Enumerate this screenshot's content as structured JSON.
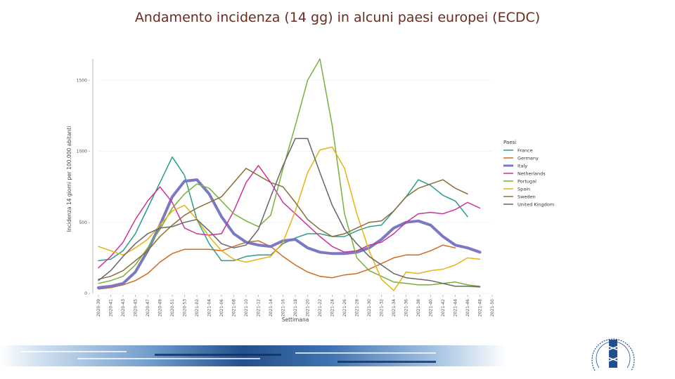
{
  "slide": {
    "title": "Andamento incidenza (14 gg) in alcuni paesi europei (ECDC)"
  },
  "colors": {
    "title": "#6b2b1f",
    "axis": "#777777",
    "grid": "#eeeeee"
  },
  "icons": {
    "footer": "footer-banner-graphic",
    "seal": "istituto-superiore-di-sanita-seal"
  },
  "chart_data": {
    "type": "line",
    "title": "",
    "xlabel": "Settimana",
    "ylabel": "Incidenza 14 giorni per 100.000 abitanti",
    "ylim": [
      0,
      1650
    ],
    "yticks": [
      0,
      500,
      1000,
      1500
    ],
    "ytick_labels": [
      "0 -",
      "500 -",
      "1000 -",
      "1500 -"
    ],
    "grid": false,
    "legend": {
      "title": "Paesi",
      "position": "right"
    },
    "categories": [
      "2020-39",
      "2020-41",
      "2020-43",
      "2020-45",
      "2020-47",
      "2020-49",
      "2020-51",
      "2020-53",
      "2021-02",
      "2021-04",
      "2021-06",
      "2021-08",
      "2021-10",
      "2021-12",
      "2021-14",
      "2021-16",
      "2021-18",
      "2021-20",
      "2021-22",
      "2021-24",
      "2021-26",
      "2021-28",
      "2021-30",
      "2021-32",
      "2021-34",
      "2021-36",
      "2021-38",
      "2021-40",
      "2021-42",
      "2021-44",
      "2021-46",
      "2021-48",
      "2021-50"
    ],
    "series": [
      {
        "name": "France",
        "color": "#2a9d8f",
        "width": 1.5,
        "values": [
          230,
          240,
          300,
          420,
          600,
          780,
          960,
          830,
          520,
          350,
          230,
          230,
          260,
          270,
          270,
          350,
          390,
          420,
          420,
          400,
          400,
          440,
          470,
          480,
          580,
          680,
          800,
          760,
          690,
          650,
          540,
          null,
          null
        ]
      },
      {
        "name": "Germany",
        "color": "#d2691e",
        "width": 1.5,
        "values": [
          30,
          40,
          60,
          90,
          140,
          220,
          280,
          310,
          310,
          310,
          300,
          330,
          360,
          370,
          330,
          260,
          200,
          150,
          120,
          110,
          130,
          140,
          170,
          210,
          250,
          270,
          270,
          300,
          340,
          320,
          null,
          null,
          null
        ]
      },
      {
        "name": "Italy",
        "color": "#7b78c4",
        "width": 4,
        "values": [
          40,
          50,
          70,
          150,
          300,
          480,
          680,
          790,
          800,
          700,
          540,
          420,
          360,
          340,
          330,
          370,
          380,
          320,
          290,
          280,
          280,
          290,
          320,
          380,
          460,
          500,
          510,
          480,
          400,
          340,
          320,
          290,
          null
        ]
      },
      {
        "name": "Netherlands",
        "color": "#cc3399",
        "width": 1.5,
        "values": [
          180,
          260,
          360,
          520,
          650,
          750,
          640,
          460,
          420,
          410,
          420,
          580,
          780,
          900,
          780,
          640,
          560,
          480,
          400,
          330,
          290,
          300,
          340,
          360,
          420,
          500,
          560,
          570,
          560,
          590,
          640,
          600,
          null
        ]
      },
      {
        "name": "Portugal",
        "color": "#77b03a",
        "width": 1.5,
        "values": [
          70,
          90,
          120,
          200,
          320,
          450,
          600,
          700,
          770,
          740,
          650,
          560,
          510,
          470,
          550,
          880,
          1180,
          1500,
          1650,
          1180,
          560,
          250,
          160,
          120,
          80,
          70,
          60,
          60,
          70,
          80,
          60,
          50,
          null
        ]
      },
      {
        "name": "Spain",
        "color": "#e6b214",
        "width": 1.5,
        "values": [
          330,
          300,
          270,
          320,
          380,
          480,
          580,
          620,
          520,
          400,
          300,
          240,
          220,
          240,
          260,
          360,
          580,
          850,
          1010,
          1030,
          880,
          560,
          300,
          100,
          20,
          150,
          140,
          160,
          170,
          200,
          250,
          240,
          null
        ]
      },
      {
        "name": "Sweden",
        "color": "#8a6d3b",
        "width": 1.5,
        "values": [
          100,
          120,
          160,
          230,
          300,
          400,
          480,
          550,
          600,
          640,
          680,
          780,
          880,
          830,
          780,
          750,
          640,
          520,
          450,
          400,
          420,
          460,
          500,
          510,
          580,
          680,
          740,
          770,
          800,
          740,
          700,
          null,
          null
        ]
      },
      {
        "name": "United Kingdom",
        "color": "#666666",
        "width": 1.5,
        "values": [
          90,
          160,
          260,
          350,
          420,
          460,
          470,
          500,
          520,
          440,
          350,
          320,
          340,
          450,
          680,
          900,
          1090,
          1090,
          850,
          620,
          450,
          350,
          260,
          200,
          140,
          110,
          100,
          90,
          70,
          50,
          50,
          45,
          null
        ]
      }
    ]
  }
}
